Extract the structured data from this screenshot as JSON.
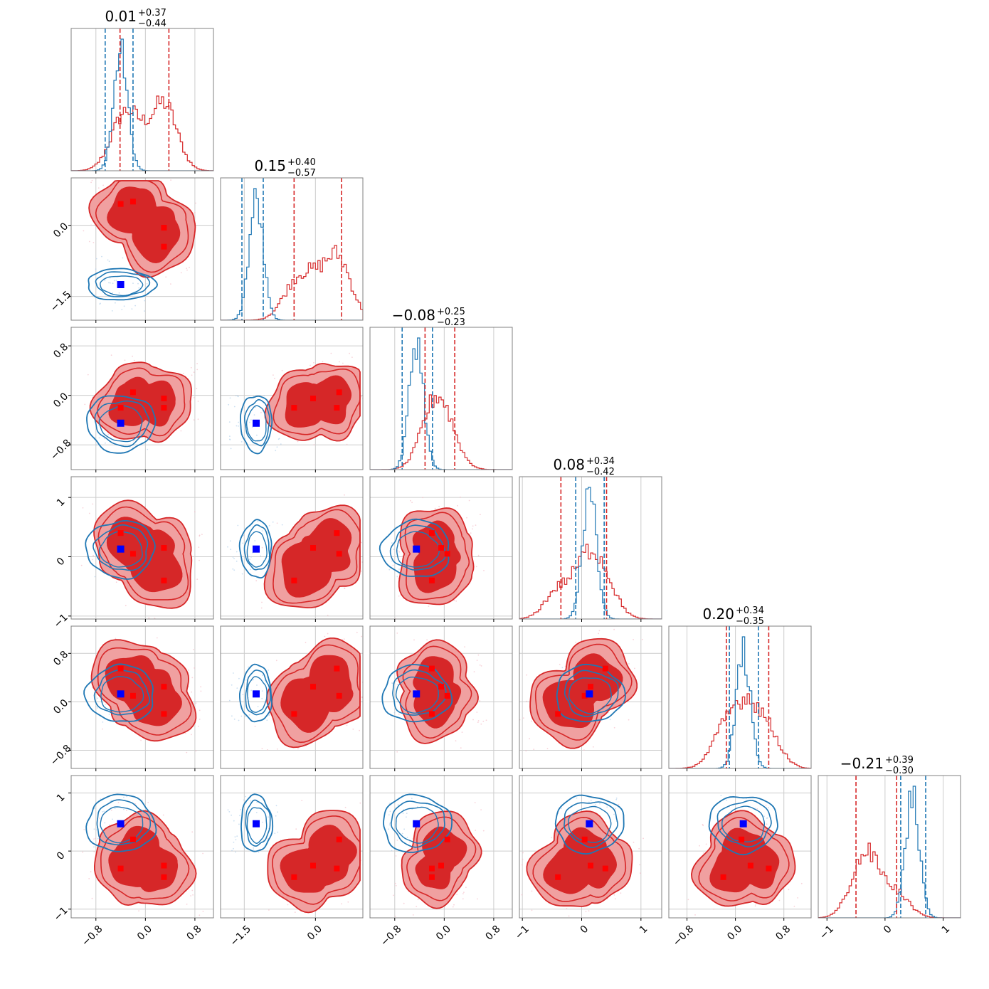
{
  "chart_data": {
    "type": "corner",
    "n_params": 6,
    "colors": {
      "red_fill_outer": "#f0a0a0",
      "red_fill_inner": "#d62728",
      "red_line": "#d62728",
      "blue_line": "#1f77b4",
      "blue_marker": "#0000ff",
      "red_marker": "#ff0000",
      "grid": "#cccccc",
      "frame": "#808080"
    },
    "params": [
      {
        "range": [
          -1.2,
          1.1
        ],
        "ticks": [
          -0.8,
          0.0,
          0.8
        ],
        "tick_labels": [
          "−0.8",
          "0.0",
          "0.8"
        ],
        "title_main": "0.01",
        "title_plus": "+0.37",
        "title_minus": "−0.44"
      },
      {
        "range": [
          -2.0,
          1.0
        ],
        "ticks": [
          -1.5,
          0.0
        ],
        "tick_labels": [
          "−1.5",
          "0.0"
        ],
        "title_main": "0.15",
        "title_plus": "+0.40",
        "title_minus": "−0.57"
      },
      {
        "range": [
          -1.2,
          1.1
        ],
        "ticks": [
          -0.8,
          0.0,
          0.8
        ],
        "tick_labels": [
          "−0.8",
          "0.0",
          "0.8"
        ],
        "title_main": "−0.08",
        "title_plus": "+0.25",
        "title_minus": "−0.23"
      },
      {
        "range": [
          -1.05,
          1.35
        ],
        "ticks": [
          -1,
          0,
          1
        ],
        "tick_labels": [
          "−1",
          "0",
          "1"
        ],
        "title_main": "0.08",
        "title_plus": "+0.34",
        "title_minus": "−0.42"
      },
      {
        "range": [
          -1.1,
          1.25
        ],
        "ticks": [
          -0.8,
          0.0,
          0.8
        ],
        "tick_labels": [
          "−0.8",
          "0.0",
          "0.8"
        ],
        "title_main": "0.20",
        "title_plus": "+0.34",
        "title_minus": "−0.35"
      },
      {
        "range": [
          -1.15,
          1.3
        ],
        "ticks": [
          -1,
          0,
          1
        ],
        "tick_labels": [
          "−1",
          "0",
          "1"
        ],
        "title_main": "−0.21",
        "title_plus": "+0.39",
        "title_minus": "−0.30"
      }
    ],
    "red_modes": [
      [
        -0.4,
        0.45,
        -0.2,
        0.4,
        0.55,
        -0.3
      ],
      [
        -0.2,
        0.5,
        0.05,
        0.05,
        0.1,
        0.2
      ],
      [
        0.3,
        -0.05,
        -0.05,
        0.15,
        0.25,
        -0.25
      ],
      [
        0.3,
        -0.45,
        -0.2,
        -0.4,
        -0.2,
        -0.45
      ]
    ],
    "blue_center": [
      -0.4,
      -1.25,
      -0.45,
      0.13,
      0.13,
      0.47
    ],
    "quantiles": {
      "red": [
        [
          -0.41,
          0.38
        ],
        [
          -0.45,
          0.55
        ],
        [
          -0.31,
          0.17
        ],
        [
          -0.35,
          0.42
        ],
        [
          -0.15,
          0.55
        ],
        [
          -0.5,
          0.2
        ]
      ],
      "blue": [
        [
          -0.65,
          -0.2
        ],
        [
          -1.55,
          -1.1
        ],
        [
          -0.68,
          -0.19
        ],
        [
          -0.1,
          0.38
        ],
        [
          -0.1,
          0.38
        ],
        [
          0.27,
          0.7
        ]
      ]
    }
  }
}
